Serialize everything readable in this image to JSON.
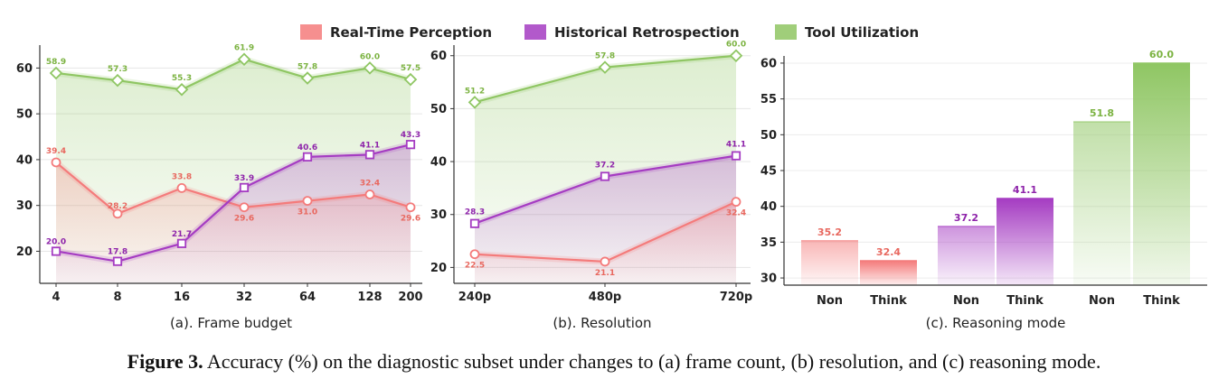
{
  "legend": [
    {
      "name": "Real-Time Perception",
      "color": "#f47b7b"
    },
    {
      "name": "Historical Retrospection",
      "color": "#a53cc2"
    },
    {
      "name": "Tool Utilization",
      "color": "#8fc663"
    }
  ],
  "caption": {
    "label": "Figure 3.",
    "text": "Accuracy (%) on the diagnostic subset under changes to (a) frame count, (b) resolution, and (c) reasoning mode."
  },
  "chart_data": [
    {
      "type": "line",
      "subtitle": "(a). Frame budget",
      "categories": [
        "4",
        "8",
        "16",
        "32",
        "64",
        "128",
        "200"
      ],
      "ylim": [
        13,
        65
      ],
      "yticks": [
        20,
        30,
        40,
        50,
        60
      ],
      "grid": true,
      "series": [
        {
          "name": "Real-Time Perception",
          "values": [
            39.4,
            28.2,
            33.8,
            29.6,
            31.0,
            32.4,
            29.6
          ],
          "marker": "circle",
          "color": "#f47b7b",
          "label_color": "#e8685f"
        },
        {
          "name": "Historical Retrospection",
          "values": [
            20.0,
            17.8,
            21.7,
            33.9,
            40.6,
            41.1,
            43.3
          ],
          "marker": "square",
          "color": "#a53cc2",
          "label_color": "#8e24aa"
        },
        {
          "name": "Tool Utilization",
          "values": [
            58.9,
            57.3,
            55.3,
            61.9,
            57.8,
            60.0,
            57.5
          ],
          "marker": "diamond",
          "color": "#8fc663",
          "label_color": "#7cb342"
        }
      ]
    },
    {
      "type": "line",
      "subtitle": "(b). Resolution",
      "categories": [
        "240p",
        "480p",
        "720p"
      ],
      "ylim": [
        17,
        62
      ],
      "yticks": [
        20,
        30,
        40,
        50,
        60
      ],
      "grid": true,
      "series": [
        {
          "name": "Real-Time Perception",
          "values": [
            22.5,
            21.1,
            32.4
          ],
          "marker": "circle",
          "color": "#f47b7b",
          "label_color": "#e8685f"
        },
        {
          "name": "Historical Retrospection",
          "values": [
            28.3,
            37.2,
            41.1
          ],
          "marker": "square",
          "color": "#a53cc2",
          "label_color": "#8e24aa"
        },
        {
          "name": "Tool Utilization",
          "values": [
            51.2,
            57.8,
            60.0
          ],
          "marker": "diamond",
          "color": "#8fc663",
          "label_color": "#7cb342"
        }
      ]
    },
    {
      "type": "bar",
      "subtitle": "(c). Reasoning mode",
      "ylim": [
        29,
        61
      ],
      "yticks": [
        30,
        35,
        40,
        45,
        50,
        55,
        60
      ],
      "bars": [
        {
          "category": "Non",
          "series": "Real-Time Perception",
          "value": 35.2,
          "color": "#f47b7b",
          "label_color": "#e8685f",
          "solid": false
        },
        {
          "category": "Think",
          "series": "Real-Time Perception",
          "value": 32.4,
          "color": "#f47b7b",
          "label_color": "#e8685f",
          "solid": true
        },
        {
          "category": "Non",
          "series": "Historical Retrospection",
          "value": 37.2,
          "color": "#a53cc2",
          "label_color": "#8e24aa",
          "solid": false
        },
        {
          "category": "Think",
          "series": "Historical Retrospection",
          "value": 41.1,
          "color": "#a53cc2",
          "label_color": "#8e24aa",
          "solid": true
        },
        {
          "category": "Non",
          "series": "Tool Utilization",
          "value": 51.8,
          "color": "#8fc663",
          "label_color": "#7cb342",
          "solid": false
        },
        {
          "category": "Think",
          "series": "Tool Utilization",
          "value": 60.0,
          "color": "#8fc663",
          "label_color": "#7cb342",
          "solid": true
        }
      ]
    }
  ]
}
